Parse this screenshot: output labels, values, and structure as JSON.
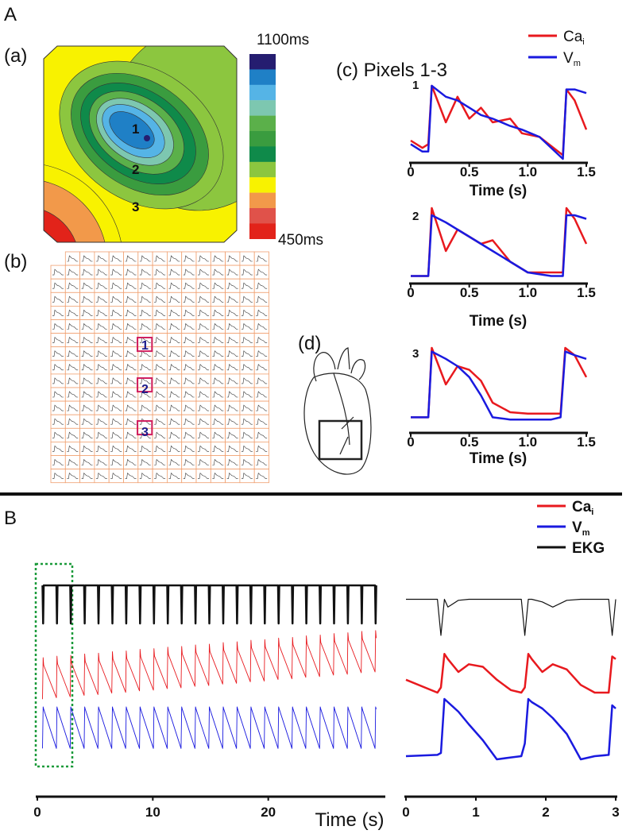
{
  "panels": {
    "A": "A",
    "a": "(a)",
    "b": "(b)",
    "c": "(c) Pixels 1-3",
    "d": "(d)",
    "B": "B"
  },
  "map": {
    "max_label": "1100ms",
    "min_label": "450ms",
    "pixels": [
      "1",
      "2",
      "3"
    ],
    "colors": [
      "#251d70",
      "#1f80c6",
      "#55b4e6",
      "#7dc7b0",
      "#5bb04a",
      "#3a9c3f",
      "#0f8a4a",
      "#8cc63f",
      "#f8f200",
      "#f2994a",
      "#e0524a",
      "#e2231a"
    ]
  },
  "grid": {
    "pixels": [
      "1",
      "2",
      "3"
    ]
  },
  "chart_data": [
    {
      "type": "line",
      "title": "1",
      "xlabel": "Time (s)",
      "xlim": [
        0,
        1.5
      ],
      "xticks": [
        0,
        0.5,
        {
          "value": 1,
          "label": "1.0"
        },
        1.5
      ],
      "ylim": [
        0,
        1
      ],
      "legend": [
        {
          "text": "Ca",
          "sub": "i"
        },
        {
          "text": "V",
          "sub": "m"
        }
      ],
      "x": [
        0,
        0.1,
        0.15,
        0.18,
        0.3,
        0.4,
        0.5,
        0.6,
        0.7,
        0.85,
        0.95,
        1.1,
        1.3,
        1.33,
        1.4,
        1.5
      ],
      "series": [
        {
          "color": "#e8191e",
          "values": [
            0.25,
            0.15,
            0.2,
            1.0,
            0.5,
            0.85,
            0.55,
            0.7,
            0.5,
            0.55,
            0.35,
            0.3,
            0.05,
            0.95,
            0.8,
            0.4
          ]
        },
        {
          "color": "#1a1adf",
          "values": [
            0.2,
            0.1,
            0.1,
            1.0,
            0.85,
            0.8,
            0.7,
            0.6,
            0.55,
            0.45,
            0.4,
            0.3,
            0.0,
            0.95,
            0.95,
            0.9
          ]
        }
      ]
    },
    {
      "type": "line",
      "title": "2",
      "xlabel": "Time (s)",
      "xlim": [
        0,
        1.5
      ],
      "xticks": [
        0,
        0.5,
        {
          "value": 1,
          "label": "1.0"
        },
        1.5
      ],
      "ylim": [
        0,
        1
      ],
      "x": [
        0,
        0.15,
        0.18,
        0.3,
        0.4,
        0.5,
        0.6,
        0.7,
        0.85,
        1.0,
        1.2,
        1.3,
        1.33,
        1.4,
        1.5
      ],
      "series": [
        {
          "color": "#e8191e",
          "values": [
            0.05,
            0.05,
            1.0,
            0.4,
            0.7,
            0.6,
            0.5,
            0.55,
            0.25,
            0.1,
            0.1,
            0.1,
            1.0,
            0.85,
            0.5
          ]
        },
        {
          "color": "#1a1adf",
          "values": [
            0.05,
            0.05,
            0.9,
            0.8,
            0.7,
            0.6,
            0.5,
            0.4,
            0.25,
            0.1,
            0.05,
            0.05,
            0.9,
            0.9,
            0.85
          ]
        }
      ]
    },
    {
      "type": "line",
      "title": "3",
      "xlabel": "Time (s)",
      "xlim": [
        0,
        1.5
      ],
      "xticks": [
        0,
        0.5,
        {
          "value": 1,
          "label": "1.0"
        },
        1.5
      ],
      "ylim": [
        0,
        1
      ],
      "x": [
        0,
        0.15,
        0.18,
        0.3,
        0.4,
        0.5,
        0.6,
        0.7,
        0.85,
        1.0,
        1.2,
        1.28,
        1.32,
        1.4,
        1.5
      ],
      "series": [
        {
          "color": "#e8191e",
          "values": [
            0.05,
            0.05,
            1.0,
            0.5,
            0.75,
            0.7,
            0.55,
            0.25,
            0.12,
            0.1,
            0.1,
            0.1,
            1.0,
            0.9,
            0.6
          ]
        },
        {
          "color": "#1a1adf",
          "values": [
            0.05,
            0.05,
            0.95,
            0.85,
            0.75,
            0.6,
            0.35,
            0.05,
            0.02,
            0.02,
            0.02,
            0.05,
            0.95,
            0.9,
            0.85
          ]
        }
      ]
    },
    {
      "type": "line",
      "xlabel": "Time (s)",
      "xlim": [
        0,
        30
      ],
      "xticks": [
        0,
        10,
        20
      ],
      "ylim": [
        0,
        1
      ],
      "legend": [
        {
          "text": "Ca",
          "sub": "i"
        },
        {
          "text": "V",
          "sub": "m"
        },
        {
          "text": "EKG"
        }
      ],
      "x": [
        0.45,
        0.5,
        0.55,
        1.65,
        1.7,
        1.75,
        2.85,
        2.9,
        2.95,
        4.05,
        4.1,
        4.15,
        5.25,
        5.3,
        5.35,
        6.45,
        6.5,
        6.55,
        7.65,
        7.7,
        7.75,
        8.85,
        8.9,
        8.95,
        10.05,
        10.1,
        10.15,
        11.25,
        11.3,
        11.35,
        12.45,
        12.5,
        12.55,
        13.65,
        13.7,
        13.75,
        14.85,
        14.9,
        14.95,
        16.05,
        16.1,
        16.15,
        17.25,
        17.3,
        17.35,
        18.45,
        18.5,
        18.55,
        19.65,
        19.7,
        19.75,
        20.85,
        20.9,
        20.95,
        22.05,
        22.1,
        22.15,
        23.25,
        23.3,
        23.35,
        24.45,
        24.5,
        24.55,
        25.65,
        25.7,
        25.75,
        26.85,
        26.9,
        26.95,
        28.05,
        28.1,
        28.15,
        29.25,
        29.3,
        29.35
      ],
      "series": [
        {
          "color": "#e8191e",
          "values": [
            0.05,
            0.6,
            0.5,
            0.07,
            0.62,
            0.52,
            0.08,
            0.63,
            0.53,
            0.1,
            0.65,
            0.55,
            0.11,
            0.66,
            0.56,
            0.13,
            0.68,
            0.58,
            0.14,
            0.69,
            0.59,
            0.16,
            0.71,
            0.61,
            0.17,
            0.72,
            0.62,
            0.19,
            0.74,
            0.64,
            0.2,
            0.75,
            0.65,
            0.22,
            0.77,
            0.67,
            0.23,
            0.78,
            0.68,
            0.25,
            0.8,
            0.7,
            0.26,
            0.81,
            0.71,
            0.28,
            0.83,
            0.73,
            0.29,
            0.84,
            0.74,
            0.31,
            0.86,
            0.76,
            0.32,
            0.87,
            0.77,
            0.34,
            0.89,
            0.79,
            0.35,
            0.9,
            0.8,
            0.37,
            0.92,
            0.82,
            0.38,
            0.93,
            0.83,
            0.4,
            0.95,
            0.85,
            0.41,
            0.96,
            0.86
          ]
        },
        {
          "color": "#1a1adf",
          "values": [
            0.05,
            1,
            0.95,
            0.05,
            1,
            0.95,
            0.05,
            1,
            0.95,
            0.05,
            1,
            0.95,
            0.05,
            1,
            0.95,
            0.05,
            1,
            0.95,
            0.05,
            1,
            0.95,
            0.05,
            1,
            0.95,
            0.05,
            1,
            0.95,
            0.05,
            1,
            0.95,
            0.05,
            1,
            0.95,
            0.05,
            1,
            0.95,
            0.05,
            1,
            0.95,
            0.05,
            1,
            0.95,
            0.05,
            1,
            0.95,
            0.05,
            1,
            0.95,
            0.05,
            1,
            0.95,
            0.05,
            1,
            0.95,
            0.05,
            1,
            0.95,
            0.05,
            1,
            0.95,
            0.05,
            1,
            0.95,
            0.05,
            1,
            0.95,
            0.05,
            1,
            0.95,
            0.05,
            1,
            0.95,
            0.05,
            1,
            0.95
          ]
        },
        {
          "color": "#111111",
          "values": [
            0.6,
            0,
            0.6,
            0.6,
            0,
            0.6,
            0.6,
            0,
            0.6,
            0.6,
            0,
            0.6,
            0.6,
            0,
            0.6,
            0.6,
            0,
            0.6,
            0.6,
            0,
            0.6,
            0.6,
            0,
            0.6,
            0.6,
            0,
            0.6,
            0.6,
            0,
            0.6,
            0.6,
            0,
            0.6,
            0.6,
            0,
            0.6,
            0.6,
            0,
            0.6,
            0.6,
            0,
            0.6,
            0.6,
            0,
            0.6,
            0.6,
            0,
            0.6,
            0.6,
            0,
            0.6,
            0.6,
            0,
            0.6,
            0.6,
            0,
            0.6,
            0.6,
            0,
            0.6,
            0.6,
            0,
            0.6,
            0.6,
            0,
            0.6,
            0.6,
            0,
            0.6,
            0.6,
            0,
            0.6,
            0.6,
            0,
            0.6
          ]
        }
      ]
    },
    {
      "type": "line",
      "xlim": [
        0,
        3
      ],
      "xticks": [
        0,
        1,
        2,
        3
      ],
      "ylim": [
        0,
        1
      ],
      "x": [
        0,
        0.45,
        0.5,
        0.55,
        0.6,
        0.75,
        0.9,
        1.1,
        1.3,
        1.5,
        1.65,
        1.7,
        1.75,
        1.8,
        1.95,
        2.1,
        2.3,
        2.5,
        2.7,
        2.9,
        2.95,
        3.0
      ],
      "series": [
        {
          "color": "#e8191e",
          "values": [
            0.45,
            0.2,
            0.3,
            0.95,
            0.85,
            0.6,
            0.75,
            0.7,
            0.45,
            0.25,
            0.2,
            0.3,
            0.95,
            0.85,
            0.6,
            0.75,
            0.65,
            0.35,
            0.2,
            0.2,
            0.9,
            0.85
          ]
        },
        {
          "color": "#1a1adf",
          "values": [
            0.1,
            0.12,
            0.15,
            1.0,
            0.95,
            0.8,
            0.6,
            0.35,
            0.05,
            0.08,
            0.1,
            0.3,
            1.0,
            0.95,
            0.85,
            0.7,
            0.45,
            0.05,
            0.1,
            0.12,
            0.9,
            0.85
          ]
        },
        {
          "color": "#111111",
          "values": [
            0.7,
            0.7,
            0,
            0.7,
            0.55,
            0.68,
            0.7,
            0.7,
            0.7,
            0.7,
            0.7,
            0,
            0.7,
            0.7,
            0.65,
            0.55,
            0.68,
            0.7,
            0.7,
            0.7,
            0,
            0.7
          ]
        }
      ]
    }
  ]
}
